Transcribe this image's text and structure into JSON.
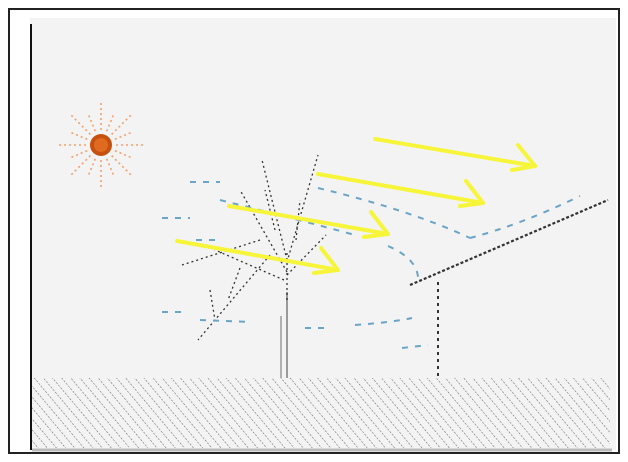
{
  "scene": {
    "sun_color": "#c8500f",
    "ray_color": "#f5a06a",
    "arrow_color": "#f7f53a",
    "breeze_color": "#6aa5c8",
    "branch_color": "#333333",
    "trunk_color": "#b0b0b0",
    "ground_hatch_color": "#666666",
    "icons": [
      "sun-icon",
      "tree-icon",
      "lean-to-roof-icon",
      "sunlight-arrow-icon",
      "air-flow-icon",
      "ground-icon"
    ]
  }
}
